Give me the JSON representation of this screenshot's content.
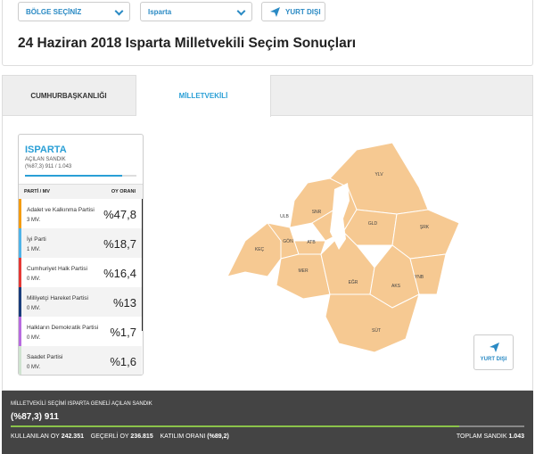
{
  "toolbar": {
    "region_select": "BÖLGE SEÇİNİZ",
    "city_select": "Isparta",
    "abroad_button": "YURT DIŞI"
  },
  "header": {
    "title": "24 Haziran 2018 Isparta Milletvekili Seçim Sonuçları"
  },
  "tabs": [
    "CUMHURBAŞKANLIĞI",
    "MİLLETVEKİLİ"
  ],
  "panel": {
    "city": "ISPARTA",
    "opened_label": "AÇILAN SANDIK",
    "opened_value": "(%87,3) 911 / 1.043",
    "col_party": "PARTİ / MV",
    "col_rate": "OY ORANI",
    "rows": [
      {
        "party": "Adalet ve Kalkınma Partisi",
        "mv": "3 MV.",
        "rate": "%47,8",
        "color": "#f39c12"
      },
      {
        "party": "İyi Parti",
        "mv": "1 MV.",
        "rate": "%18,7",
        "color": "#4fb3e8"
      },
      {
        "party": "Cumhuriyet Halk Partisi",
        "mv": "0 MV.",
        "rate": "%16,4",
        "color": "#e53935"
      },
      {
        "party": "Milliyetçi Hareket Partisi",
        "mv": "0 MV.",
        "rate": "%13",
        "color": "#1a3d7c"
      },
      {
        "party": "Halkların Demokratik Partisi",
        "mv": "0 MV.",
        "rate": "%1,7",
        "color": "#b86be0"
      },
      {
        "party": "Saadet Partisi",
        "mv": "0 MV.",
        "rate": "%1,6",
        "color": "#cfe3d0"
      }
    ]
  },
  "map": {
    "districts": [
      "YLV",
      "ULB",
      "SNR",
      "GLD",
      "ŞRK",
      "KEÇ",
      "GÖN",
      "ATB",
      "MER",
      "EĞR",
      "AKS",
      "YNB",
      "SÜT"
    ],
    "abroad_button": "YURT DIŞI"
  },
  "footer": {
    "title": "MİLLETVEKİLİ SEÇİMİ ISPARTA GENELİ AÇILAN SANDIK",
    "opened": "(%87,3) 911",
    "used_label": "KULLANILAN OY",
    "used_value": "242.351",
    "valid_label": "GEÇERLİ OY",
    "valid_value": "236.815",
    "turnout_label": "KATILIM ORANI",
    "turnout_value": "(%89,2)",
    "total_label": "TOPLAM SANDIK",
    "total_value": "1.043"
  }
}
